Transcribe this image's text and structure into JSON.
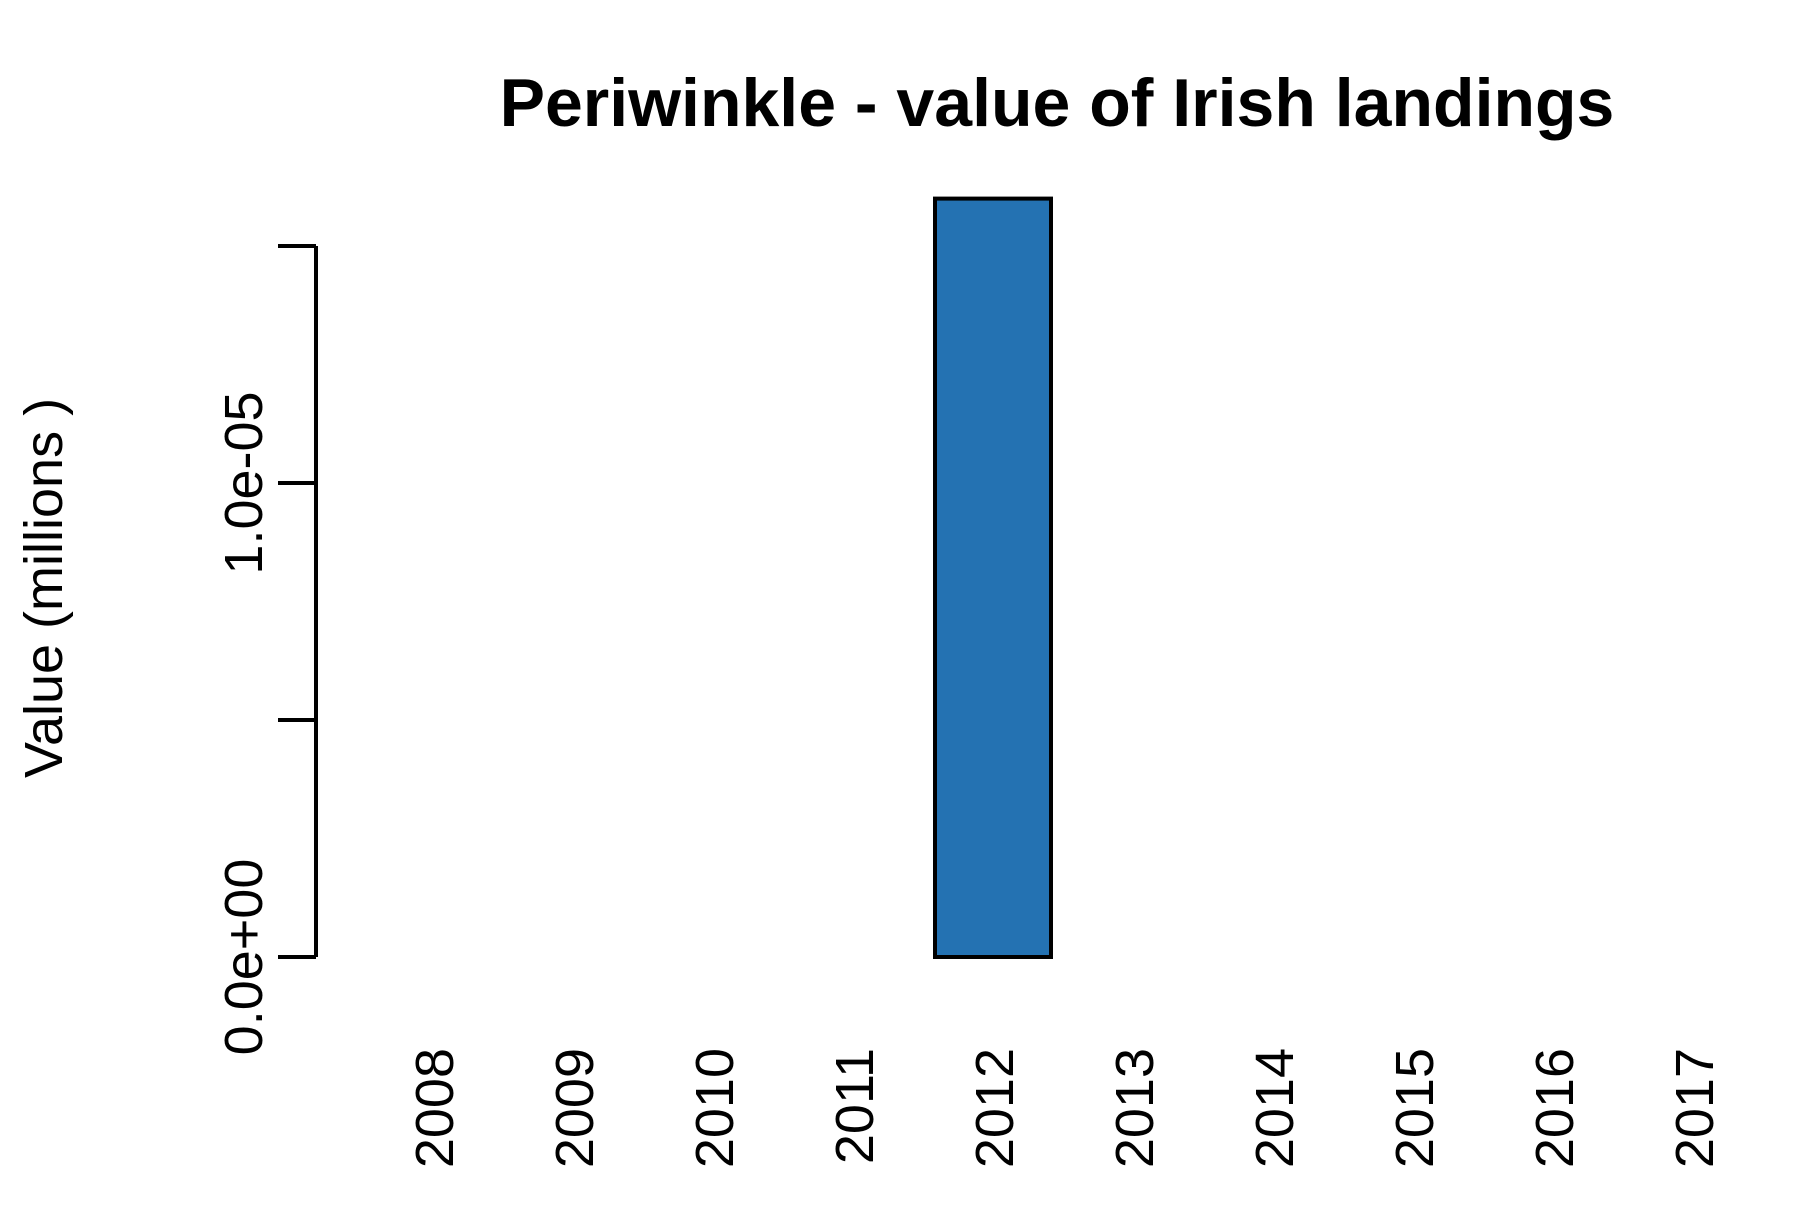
{
  "chart_data": {
    "type": "bar",
    "title": "Periwinkle - value of Irish landings",
    "xlabel": "",
    "ylabel": "Value (millions )",
    "categories": [
      "2008",
      "2009",
      "2010",
      "2011",
      "2012",
      "2013",
      "2014",
      "2015",
      "2016",
      "2017"
    ],
    "values": [
      0,
      0,
      0,
      0,
      1.6e-05,
      0,
      0,
      0,
      0,
      0
    ],
    "ylim": [
      0,
      1.5e-05
    ],
    "yticks": [
      0,
      5e-06,
      1e-05,
      1.5e-05
    ],
    "ytick_labels": [
      "0.0e+00",
      "",
      "1.0e-05",
      ""
    ],
    "bar_color": "#2472B2",
    "grid": false,
    "legend": "none"
  }
}
